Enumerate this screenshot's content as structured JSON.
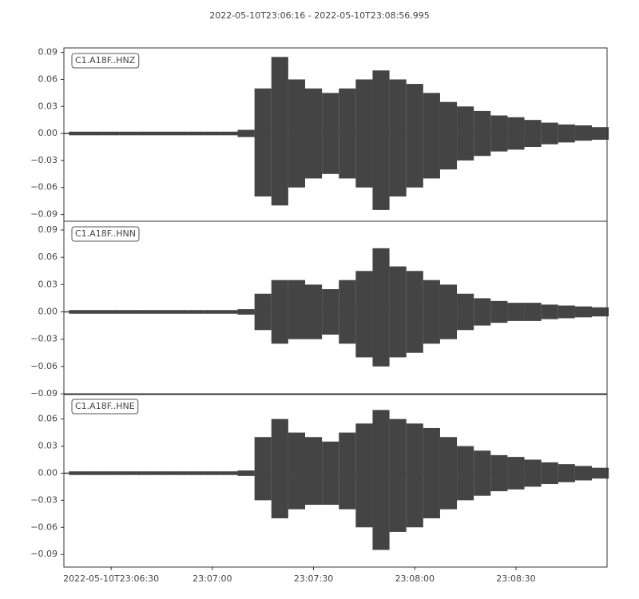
{
  "title": "2022-05-10T23:06:16  -  2022-05-10T23:08:56.995",
  "chart_data": [
    {
      "type": "waveform",
      "label": "C1.A18F..HNZ",
      "color": "#444444",
      "xlim": [
        "23:06:16",
        "23:08:56.995"
      ],
      "ylim": [
        -0.0975,
        0.095
      ],
      "yticks": [
        0.09,
        0.06,
        0.03,
        {
          "value": 0,
          "label": "0.00"
        },
        {
          "value": -0.03,
          "label": "−0.03"
        },
        {
          "value": -0.06,
          "label": "−0.06"
        },
        {
          "value": -0.09,
          "label": "−0.09"
        }
      ],
      "x": [
        "23:06:20",
        "23:06:25",
        "23:06:30",
        "23:06:35",
        "23:06:40",
        "23:06:45",
        "23:06:50",
        "23:06:55",
        "23:07:00",
        "23:07:05",
        "23:07:10",
        "23:07:15",
        "23:07:20",
        "23:07:25",
        "23:07:30",
        "23:07:35",
        "23:07:40",
        "23:07:45",
        "23:07:50",
        "23:07:55",
        "23:08:00",
        "23:08:05",
        "23:08:10",
        "23:08:15",
        "23:08:20",
        "23:08:25",
        "23:08:30",
        "23:08:35",
        "23:08:40",
        "23:08:45",
        "23:08:50",
        "23:08:55"
      ],
      "high": [
        0.002,
        0.002,
        0.002,
        0.002,
        0.002,
        0.002,
        0.002,
        0.002,
        0.002,
        0.002,
        0.004,
        0.05,
        0.085,
        0.06,
        0.05,
        0.045,
        0.05,
        0.06,
        0.07,
        0.06,
        0.055,
        0.045,
        0.035,
        0.03,
        0.025,
        0.02,
        0.018,
        0.015,
        0.012,
        0.01,
        0.009,
        0.007
      ],
      "low": [
        -0.002,
        -0.002,
        -0.002,
        -0.002,
        -0.002,
        -0.002,
        -0.002,
        -0.002,
        -0.002,
        -0.002,
        -0.004,
        -0.07,
        -0.08,
        -0.06,
        -0.05,
        -0.045,
        -0.05,
        -0.06,
        -0.085,
        -0.07,
        -0.06,
        -0.05,
        -0.04,
        -0.03,
        -0.025,
        -0.02,
        -0.018,
        -0.015,
        -0.012,
        -0.01,
        -0.008,
        -0.007
      ]
    },
    {
      "type": "waveform",
      "label": "C1.A18F..HNN",
      "color": "#444444",
      "xlim": [
        "23:06:16",
        "23:08:56.995"
      ],
      "ylim": [
        -0.0909,
        0.0997
      ],
      "yticks": [
        0.09,
        0.06,
        0.03,
        {
          "value": 0,
          "label": "0.00"
        },
        {
          "value": -0.03,
          "label": "−0.03"
        },
        {
          "value": -0.06,
          "label": "−0.06"
        },
        {
          "value": -0.09,
          "label": "−0.09"
        }
      ],
      "x": [
        "23:06:20",
        "23:06:25",
        "23:06:30",
        "23:06:35",
        "23:06:40",
        "23:06:45",
        "23:06:50",
        "23:06:55",
        "23:07:00",
        "23:07:05",
        "23:07:10",
        "23:07:15",
        "23:07:20",
        "23:07:25",
        "23:07:30",
        "23:07:35",
        "23:07:40",
        "23:07:45",
        "23:07:50",
        "23:07:55",
        "23:08:00",
        "23:08:05",
        "23:08:10",
        "23:08:15",
        "23:08:20",
        "23:08:25",
        "23:08:30",
        "23:08:35",
        "23:08:40",
        "23:08:45",
        "23:08:50",
        "23:08:55"
      ],
      "high": [
        0.002,
        0.002,
        0.002,
        0.002,
        0.002,
        0.002,
        0.002,
        0.002,
        0.002,
        0.002,
        0.003,
        0.02,
        0.035,
        0.035,
        0.03,
        0.025,
        0.035,
        0.045,
        0.07,
        0.05,
        0.045,
        0.035,
        0.03,
        0.02,
        0.015,
        0.012,
        0.01,
        0.01,
        0.008,
        0.007,
        0.006,
        0.005
      ],
      "low": [
        -0.002,
        -0.002,
        -0.002,
        -0.002,
        -0.002,
        -0.002,
        -0.002,
        -0.002,
        -0.002,
        -0.002,
        -0.003,
        -0.02,
        -0.035,
        -0.03,
        -0.03,
        -0.025,
        -0.035,
        -0.05,
        -0.06,
        -0.05,
        -0.045,
        -0.035,
        -0.03,
        -0.02,
        -0.015,
        -0.012,
        -0.01,
        -0.01,
        -0.008,
        -0.007,
        -0.006,
        -0.005
      ]
    },
    {
      "type": "waveform",
      "label": "C1.A18F..HNE",
      "color": "#444444",
      "xlim": [
        "23:06:16",
        "23:08:56.995"
      ],
      "ylim": [
        -0.104,
        0.088
      ],
      "yticks": [
        0.06,
        0.03,
        {
          "value": 0,
          "label": "0.00"
        },
        {
          "value": -0.03,
          "label": "−0.03"
        },
        {
          "value": -0.06,
          "label": "−0.06"
        },
        {
          "value": -0.09,
          "label": "−0.09"
        }
      ],
      "xticks": [
        {
          "value": "23:06:30",
          "label": "2022-05-10T23:06:30"
        },
        "23:07:00",
        "23:07:30",
        "23:08:00",
        "23:08:30"
      ],
      "x": [
        "23:06:20",
        "23:06:25",
        "23:06:30",
        "23:06:35",
        "23:06:40",
        "23:06:45",
        "23:06:50",
        "23:06:55",
        "23:07:00",
        "23:07:05",
        "23:07:10",
        "23:07:15",
        "23:07:20",
        "23:07:25",
        "23:07:30",
        "23:07:35",
        "23:07:40",
        "23:07:45",
        "23:07:50",
        "23:07:55",
        "23:08:00",
        "23:08:05",
        "23:08:10",
        "23:08:15",
        "23:08:20",
        "23:08:25",
        "23:08:30",
        "23:08:35",
        "23:08:40",
        "23:08:45",
        "23:08:50",
        "23:08:55"
      ],
      "high": [
        0.002,
        0.002,
        0.002,
        0.002,
        0.002,
        0.002,
        0.002,
        0.002,
        0.002,
        0.002,
        0.003,
        0.04,
        0.06,
        0.045,
        0.04,
        0.035,
        0.045,
        0.055,
        0.07,
        0.06,
        0.055,
        0.05,
        0.04,
        0.03,
        0.025,
        0.02,
        0.018,
        0.015,
        0.012,
        0.01,
        0.008,
        0.006
      ],
      "low": [
        -0.002,
        -0.002,
        -0.002,
        -0.002,
        -0.002,
        -0.002,
        -0.002,
        -0.002,
        -0.002,
        -0.002,
        -0.003,
        -0.03,
        -0.05,
        -0.04,
        -0.035,
        -0.035,
        -0.04,
        -0.06,
        -0.085,
        -0.065,
        -0.06,
        -0.05,
        -0.04,
        -0.03,
        -0.025,
        -0.02,
        -0.018,
        -0.015,
        -0.012,
        -0.01,
        -0.008,
        -0.006
      ]
    }
  ]
}
